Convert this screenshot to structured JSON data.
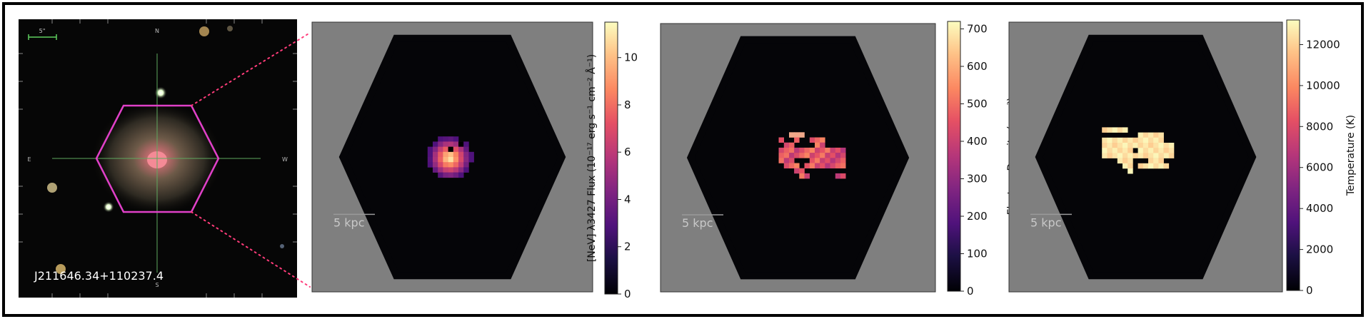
{
  "optical": {
    "object_id": "J211646.34+110237.4",
    "scale_label": "5\"",
    "compass": {
      "north": "N",
      "south": "S",
      "east": "E",
      "west": "W"
    }
  },
  "maps": [
    {
      "quantity": "flux",
      "scale_label": "5 kpc",
      "colorbar_label": "[NeV] λ3427 Flux (10⁻¹⁷ erg s⁻¹ cm⁻² Å⁻¹)",
      "colorbar_range": [
        0,
        11.5
      ],
      "colorbar_ticks": [
        {
          "value": 0,
          "label": "0"
        },
        {
          "value": 2,
          "label": "2"
        },
        {
          "value": 4,
          "label": "4"
        },
        {
          "value": 6,
          "label": "6"
        },
        {
          "value": 8,
          "label": "8"
        },
        {
          "value": 10,
          "label": "10"
        }
      ]
    },
    {
      "quantity": "density",
      "scale_label": "5 kpc",
      "colorbar_label": "Electron Density (cm⁻³)",
      "colorbar_range": [
        0,
        720
      ],
      "colorbar_ticks": [
        {
          "value": 0,
          "label": "0"
        },
        {
          "value": 100,
          "label": "100"
        },
        {
          "value": 200,
          "label": "200"
        },
        {
          "value": 300,
          "label": "300"
        },
        {
          "value": 400,
          "label": "400"
        },
        {
          "value": 500,
          "label": "500"
        },
        {
          "value": 600,
          "label": "600"
        },
        {
          "value": 700,
          "label": "700"
        }
      ]
    },
    {
      "quantity": "temperature",
      "scale_label": "5 kpc",
      "colorbar_label": "Temperature (K)",
      "colorbar_range": [
        0,
        13200
      ],
      "colorbar_ticks": [
        {
          "value": 0,
          "label": "0"
        },
        {
          "value": 2000,
          "label": "2000"
        },
        {
          "value": 4000,
          "label": "4000"
        },
        {
          "value": 6000,
          "label": "6000"
        },
        {
          "value": 8000,
          "label": "8000"
        },
        {
          "value": 10000,
          "label": "10000"
        },
        {
          "value": 12000,
          "label": "12000"
        }
      ]
    }
  ],
  "colors": {
    "hexagon_outline": "#e040c8",
    "connector_dots": "#ff3c7a",
    "map_background": "#7f7f7f",
    "field_of_view": "#050508",
    "crosshair": "#5fa85f"
  }
}
